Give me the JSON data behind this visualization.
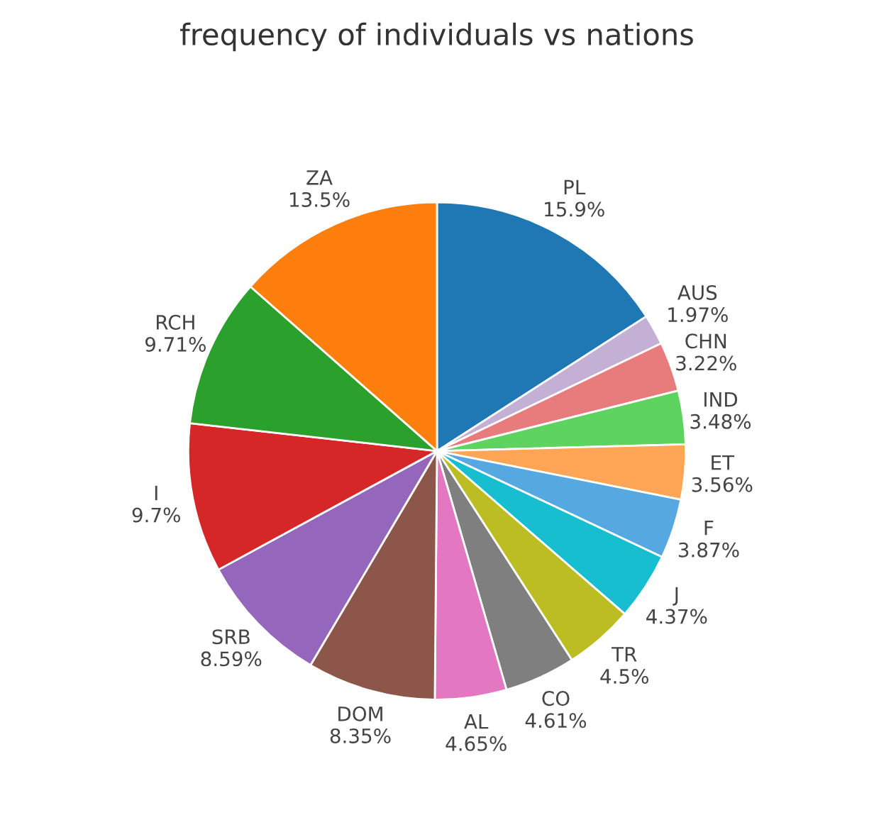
{
  "chart_data": {
    "type": "pie",
    "title": "frequency of individuals vs nations",
    "categories": [
      "PL",
      "AUS",
      "CHN",
      "IND",
      "ET",
      "F",
      "J",
      "TR",
      "CO",
      "AL",
      "DOM",
      "SRB",
      "I",
      "RCH",
      "ZA"
    ],
    "values": [
      15.9,
      1.97,
      3.22,
      3.48,
      3.56,
      3.87,
      4.37,
      4.5,
      4.61,
      4.65,
      8.35,
      8.59,
      9.7,
      9.71,
      13.5
    ],
    "value_labels": [
      "15.9%",
      "1.97%",
      "3.22%",
      "3.48%",
      "3.56%",
      "3.87%",
      "4.37%",
      "4.5%",
      "4.61%",
      "4.65%",
      "8.35%",
      "8.59%",
      "9.7%",
      "9.71%",
      "13.5%"
    ],
    "colors": [
      "#1f77b4",
      "#c5b0d5",
      "#e87c7c",
      "#5fd35f",
      "#ffa556",
      "#56a8e0",
      "#17becf",
      "#bcbd22",
      "#7f7f7f",
      "#e377c2",
      "#8c564b",
      "#9467bd",
      "#d62728",
      "#2ca02c",
      "#ff7f0e"
    ],
    "legend": false
  }
}
